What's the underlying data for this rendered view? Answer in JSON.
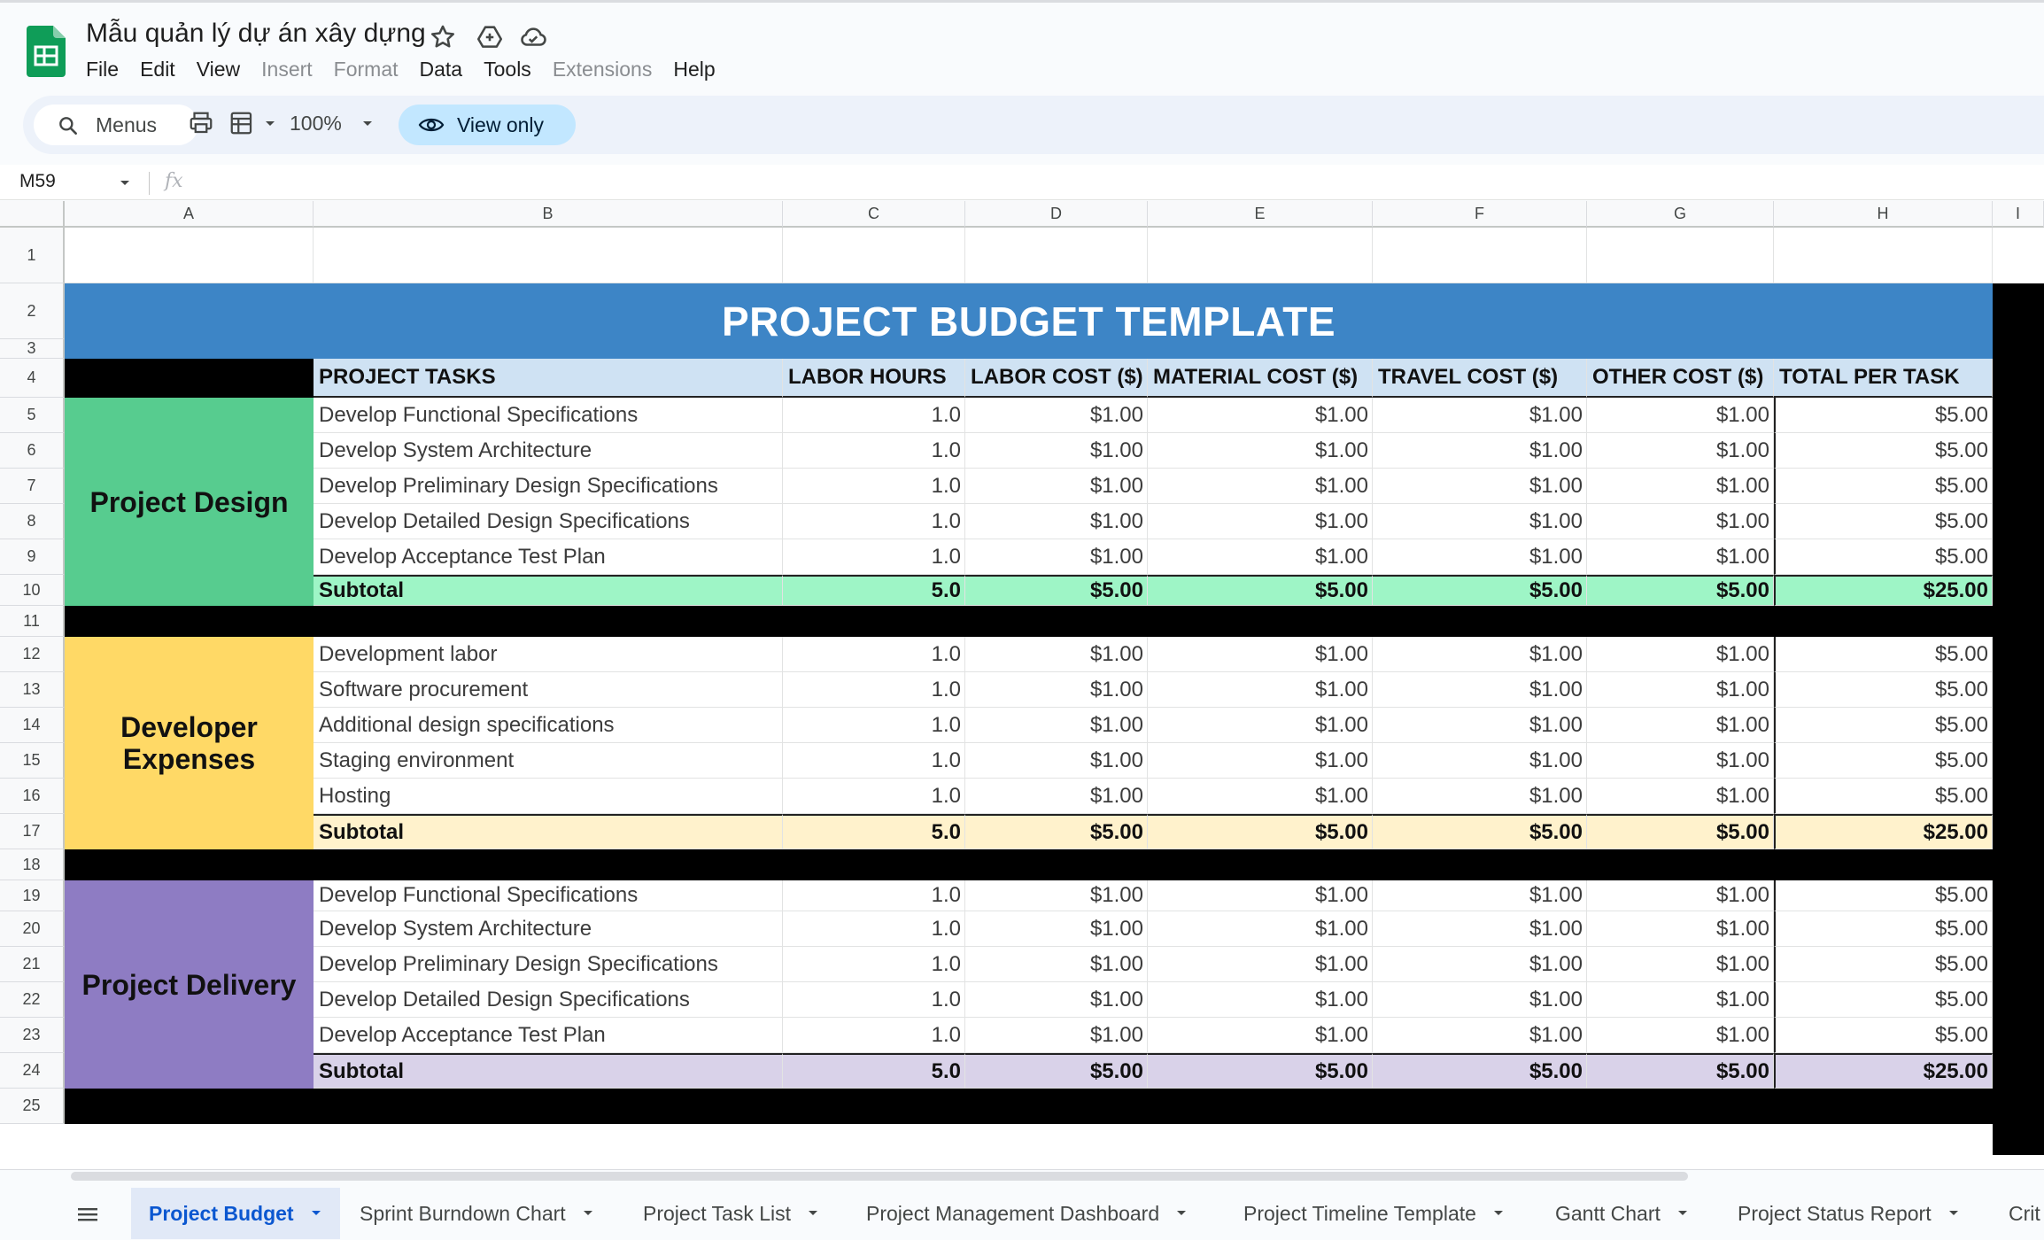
{
  "app": {
    "doc_title": "Mẫu quản lý dự án xây dựng",
    "menu": [
      {
        "label": "File",
        "enabled": true
      },
      {
        "label": "Edit",
        "enabled": true
      },
      {
        "label": "View",
        "enabled": true
      },
      {
        "label": "Insert",
        "enabled": false
      },
      {
        "label": "Format",
        "enabled": false
      },
      {
        "label": "Data",
        "enabled": true
      },
      {
        "label": "Tools",
        "enabled": true
      },
      {
        "label": "Extensions",
        "enabled": false
      },
      {
        "label": "Help",
        "enabled": true
      }
    ],
    "colors": {
      "accent": "#0b57d0",
      "view_only_bg": "#c2e7ff",
      "sheets_green": "#0f9d58"
    }
  },
  "toolbar": {
    "menus_search": "Menus",
    "zoom": "100%",
    "view_only": "View only"
  },
  "formula_bar": {
    "name_box": "M59",
    "fx": "fx"
  },
  "grid": {
    "columns": [
      "A",
      "B",
      "C",
      "D",
      "E",
      "F",
      "G",
      "H",
      "I"
    ],
    "rows": [
      "1",
      "2",
      "3",
      "4",
      "5",
      "6",
      "7",
      "8",
      "9",
      "10",
      "11",
      "12",
      "13",
      "14",
      "15",
      "16",
      "17",
      "18",
      "19",
      "20",
      "21",
      "22",
      "23",
      "24",
      "25"
    ]
  },
  "sheet": {
    "banner": "PROJECT BUDGET TEMPLATE",
    "headers": [
      "PROJECT TASKS",
      "LABOR HOURS",
      "LABOR COST ($)",
      "MATERIAL COST ($)",
      "TRAVEL COST ($)",
      "OTHER COST ($)",
      "TOTAL PER TASK"
    ],
    "sections": [
      {
        "label": "Project Design",
        "color": "#57cc8f",
        "subtotal_color": "#9ef5c6",
        "tasks": [
          [
            "Develop Functional Specifications",
            "1.0",
            "$1.00",
            "$1.00",
            "$1.00",
            "$1.00",
            "$5.00"
          ],
          [
            "Develop System Architecture",
            "1.0",
            "$1.00",
            "$1.00",
            "$1.00",
            "$1.00",
            "$5.00"
          ],
          [
            "Develop Preliminary Design Specifications",
            "1.0",
            "$1.00",
            "$1.00",
            "$1.00",
            "$1.00",
            "$5.00"
          ],
          [
            "Develop Detailed Design Specifications",
            "1.0",
            "$1.00",
            "$1.00",
            "$1.00",
            "$1.00",
            "$5.00"
          ],
          [
            "Develop Acceptance Test Plan",
            "1.0",
            "$1.00",
            "$1.00",
            "$1.00",
            "$1.00",
            "$5.00"
          ]
        ],
        "subtotal": [
          "Subtotal",
          "5.0",
          "$5.00",
          "$5.00",
          "$5.00",
          "$5.00",
          "$25.00"
        ]
      },
      {
        "label": "Developer Expenses",
        "color": "#ffd966",
        "subtotal_color": "#fff2cc",
        "tasks": [
          [
            "Development labor",
            "1.0",
            "$1.00",
            "$1.00",
            "$1.00",
            "$1.00",
            "$5.00"
          ],
          [
            "Software procurement",
            "1.0",
            "$1.00",
            "$1.00",
            "$1.00",
            "$1.00",
            "$5.00"
          ],
          [
            "Additional design specifications",
            "1.0",
            "$1.00",
            "$1.00",
            "$1.00",
            "$1.00",
            "$5.00"
          ],
          [
            "Staging environment",
            "1.0",
            "$1.00",
            "$1.00",
            "$1.00",
            "$1.00",
            "$5.00"
          ],
          [
            "Hosting",
            "1.0",
            "$1.00",
            "$1.00",
            "$1.00",
            "$1.00",
            "$5.00"
          ]
        ],
        "subtotal": [
          "Subtotal",
          "5.0",
          "$5.00",
          "$5.00",
          "$5.00",
          "$5.00",
          "$25.00"
        ]
      },
      {
        "label": "Project Delivery",
        "color": "#8e7cc3",
        "subtotal_color": "#d9d2e9",
        "tasks": [
          [
            "Develop Functional Specifications",
            "1.0",
            "$1.00",
            "$1.00",
            "$1.00",
            "$1.00",
            "$5.00"
          ],
          [
            "Develop System Architecture",
            "1.0",
            "$1.00",
            "$1.00",
            "$1.00",
            "$1.00",
            "$5.00"
          ],
          [
            "Develop Preliminary Design Specifications",
            "1.0",
            "$1.00",
            "$1.00",
            "$1.00",
            "$1.00",
            "$5.00"
          ],
          [
            "Develop Detailed Design Specifications",
            "1.0",
            "$1.00",
            "$1.00",
            "$1.00",
            "$1.00",
            "$5.00"
          ],
          [
            "Develop Acceptance Test Plan",
            "1.0",
            "$1.00",
            "$1.00",
            "$1.00",
            "$1.00",
            "$5.00"
          ]
        ],
        "subtotal": [
          "Subtotal",
          "5.0",
          "$5.00",
          "$5.00",
          "$5.00",
          "$5.00",
          "$25.00"
        ]
      }
    ]
  },
  "sheet_tabs": [
    {
      "label": "Project Budget",
      "active": true
    },
    {
      "label": "Sprint Burndown Chart",
      "active": false
    },
    {
      "label": "Project Task List",
      "active": false
    },
    {
      "label": "Project Management Dashboard",
      "active": false
    },
    {
      "label": "Project Timeline Template",
      "active": false
    },
    {
      "label": "Gantt Chart",
      "active": false
    },
    {
      "label": "Project Status Report",
      "active": false
    },
    {
      "label": "Crit",
      "active": false
    }
  ]
}
